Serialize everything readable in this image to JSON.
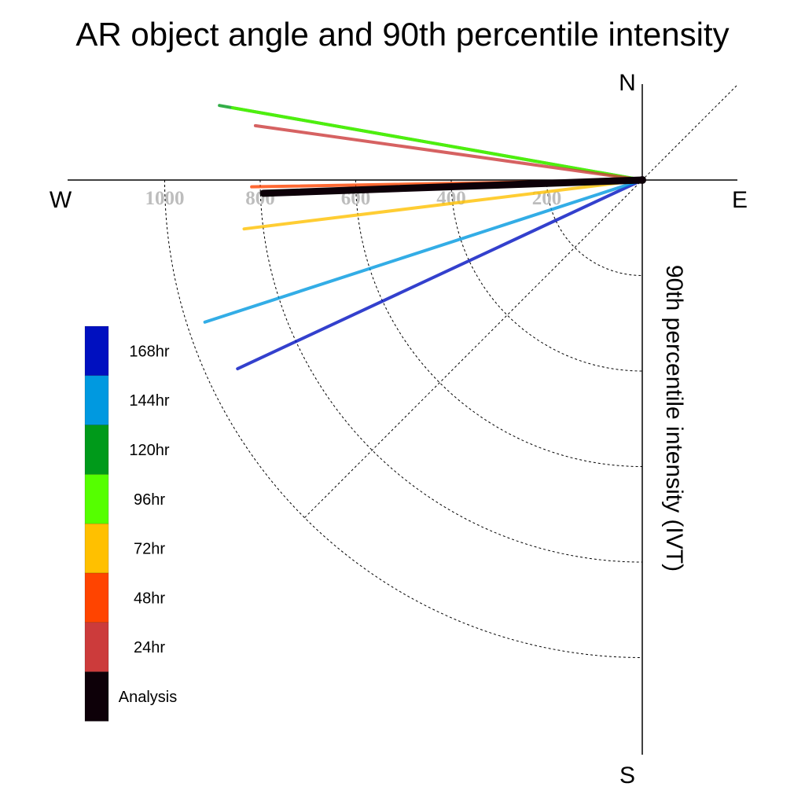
{
  "chart_data": {
    "type": "polar-vector",
    "title": "AR object angle and 90th percentile intensity",
    "ylabel": "90th percentile intensity (IVT)",
    "compass": {
      "n": "N",
      "e": "E",
      "s": "S",
      "w": "W"
    },
    "radial_ticks": [
      "200",
      "400",
      "600",
      "800",
      "1000"
    ],
    "radial_tick_values": [
      200,
      400,
      600,
      800,
      1000
    ],
    "r_max": 1000,
    "series": [
      {
        "name": "168hr",
        "color": "#0010c0",
        "angle_deg": 205,
        "intensity": 935
      },
      {
        "name": "144hr",
        "color": "#0099e0",
        "angle_deg": 198,
        "intensity": 963
      },
      {
        "name": "120hr",
        "color": "#009a1a",
        "angle_deg": 170,
        "intensity": 899
      },
      {
        "name": "96hr",
        "color": "#55ff00",
        "angle_deg": 170,
        "intensity": 871
      },
      {
        "name": "72hr",
        "color": "#ffc000",
        "angle_deg": 187,
        "intensity": 840
      },
      {
        "name": "48hr",
        "color": "#ff4400",
        "angle_deg": 181,
        "intensity": 818
      },
      {
        "name": "24hr",
        "color": "#cc3b3b",
        "angle_deg": 172,
        "intensity": 818
      },
      {
        "name": "Analysis",
        "color": "#0d0008",
        "angle_deg": 182,
        "intensity": 794
      }
    ]
  }
}
